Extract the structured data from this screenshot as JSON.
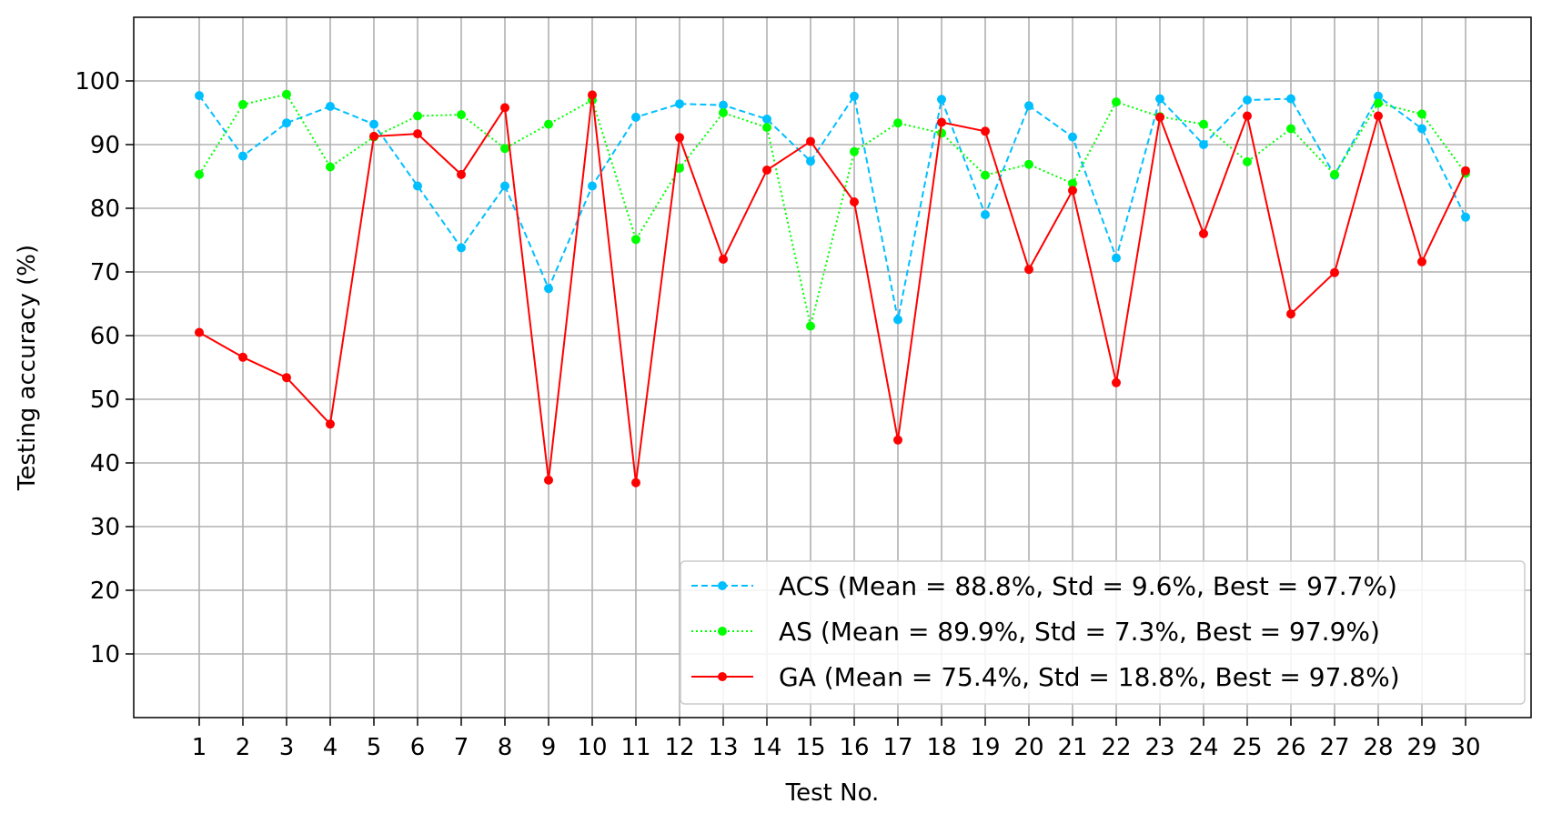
{
  "chart_data": {
    "type": "line",
    "title": "",
    "xlabel": "Test No.",
    "ylabel": "Testing accuracy (%)",
    "x": [
      1,
      2,
      3,
      4,
      5,
      6,
      7,
      8,
      9,
      10,
      11,
      12,
      13,
      14,
      15,
      16,
      17,
      18,
      19,
      20,
      21,
      22,
      23,
      24,
      25,
      26,
      27,
      28,
      29,
      30
    ],
    "xlim": [
      -0.5,
      31.5
    ],
    "ylim": [
      0,
      110
    ],
    "yticks": [
      10,
      20,
      30,
      40,
      50,
      60,
      70,
      80,
      90,
      100
    ],
    "grid": true,
    "legend_position": "lower-right",
    "series": [
      {
        "name": "ACS (Mean = 88.8%, Std = 9.6%, Best = 97.7%)",
        "color": "#00bfff",
        "line_style": "dashed",
        "values": [
          97.7,
          88.2,
          93.4,
          96.0,
          93.2,
          83.5,
          73.8,
          83.5,
          67.4,
          83.5,
          94.3,
          96.4,
          96.2,
          94.0,
          87.4,
          97.6,
          62.5,
          97.1,
          79.0,
          96.1,
          91.2,
          72.2,
          97.2,
          90.0,
          97.0,
          97.2,
          85.2,
          97.6,
          92.5,
          78.6
        ]
      },
      {
        "name": "AS (Mean = 89.9%, Std = 7.3%, Best = 97.9%)",
        "color": "#00ff00",
        "line_style": "dotted",
        "values": [
          85.3,
          96.3,
          97.9,
          86.5,
          91.2,
          94.5,
          94.7,
          89.4,
          93.2,
          97.0,
          75.1,
          86.3,
          95.0,
          92.7,
          61.5,
          88.9,
          93.4,
          91.8,
          85.2,
          86.9,
          83.9,
          96.7,
          94.4,
          93.2,
          87.3,
          92.5,
          85.3,
          96.5,
          94.8,
          85.5
        ]
      },
      {
        "name": "GA (Mean = 75.4%, Std = 18.8%, Best = 97.8%)",
        "color": "#ff0000",
        "line_style": "solid",
        "values": [
          60.5,
          56.6,
          53.4,
          46.1,
          91.3,
          91.7,
          85.3,
          95.8,
          37.3,
          97.8,
          36.9,
          91.1,
          72.0,
          86.0,
          90.5,
          81.0,
          43.6,
          93.5,
          92.1,
          70.4,
          82.8,
          52.6,
          94.3,
          76.0,
          94.5,
          63.4,
          69.9,
          94.5,
          71.6,
          85.9
        ]
      }
    ]
  }
}
